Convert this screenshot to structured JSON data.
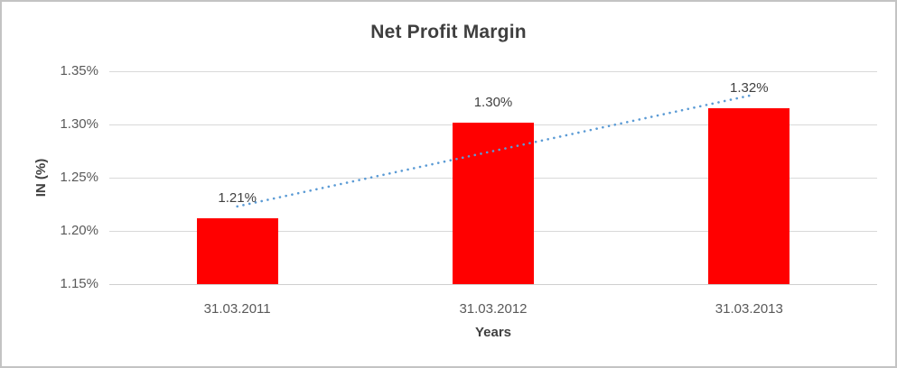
{
  "frame": {
    "background": "#FFFFFF",
    "border_color": "#C3C3C3"
  },
  "chart_data": {
    "type": "bar",
    "title": "Net Profit Margin",
    "xlabel": "Years",
    "ylabel": "IN (%)",
    "categories": [
      "31.03.2011",
      "31.03.2012",
      "31.03.2013"
    ],
    "values": [
      1.212,
      1.302,
      1.315
    ],
    "data_labels": [
      "1.21%",
      "1.30%",
      "1.32%"
    ],
    "ylim": [
      1.15,
      1.35
    ],
    "yticks": {
      "values": [
        1.35,
        1.3,
        1.25,
        1.2,
        1.15
      ],
      "labels": [
        "1.35%",
        "1.30%",
        "1.25%",
        "1.20%",
        "1.15%"
      ]
    },
    "grid": true,
    "legend": false,
    "bar_color": "#FF0000",
    "gridline_color": "#D9D9D9",
    "trendline": {
      "type": "linear",
      "style": "dotted",
      "color": "#5B9BD5",
      "start_value": 1.223,
      "end_value": 1.327
    }
  }
}
